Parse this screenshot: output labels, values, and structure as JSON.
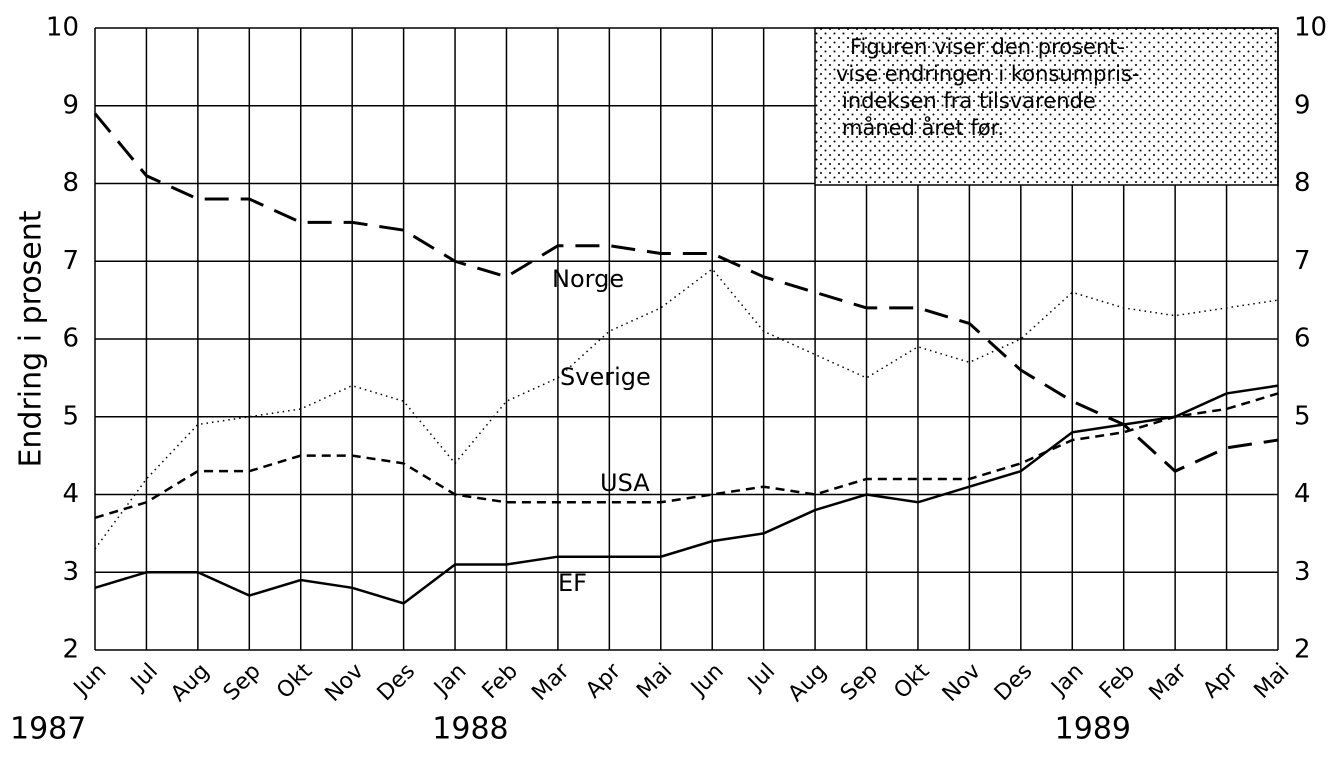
{
  "chart_data": {
    "type": "line",
    "y_label": "Endring i prosent",
    "categories": [
      "Jun",
      "Jul",
      "Aug",
      "Sep",
      "Okt",
      "Nov",
      "Des",
      "Jan",
      "Feb",
      "Mar",
      "Apr",
      "Mai",
      "Jun",
      "Jul",
      "Aug",
      "Sep",
      "Okt",
      "Nov",
      "Des",
      "Jan",
      "Feb",
      "Mar",
      "Apr",
      "Mai"
    ],
    "years": [
      {
        "label": "1987",
        "index": 0
      },
      {
        "label": "1988",
        "index": 7.3
      },
      {
        "label": "1989",
        "index": 19.4
      }
    ],
    "ylim": [
      2,
      10
    ],
    "yticks": [
      2,
      3,
      4,
      5,
      6,
      7,
      8,
      9,
      10
    ],
    "grid": true,
    "annotation": [
      "Figuren viser den prosent-",
      "vise endringen i konsumpris-",
      "indeksen fra tilsvarende",
      "måned året før."
    ],
    "series": [
      {
        "name": "Norge",
        "color": "#000000",
        "line_style": "long-dash",
        "values": [
          8.9,
          8.1,
          7.8,
          7.8,
          7.5,
          7.5,
          7.4,
          7.0,
          6.8,
          7.2,
          7.2,
          7.1,
          7.1,
          6.8,
          6.6,
          6.4,
          6.4,
          6.2,
          5.6,
          5.2,
          4.9,
          4.3,
          4.6,
          4.7
        ]
      },
      {
        "name": "Sverige",
        "color": "#000000",
        "line_style": "dotted",
        "values": [
          3.3,
          4.2,
          4.9,
          5.0,
          5.1,
          5.4,
          5.2,
          4.4,
          5.2,
          5.5,
          6.1,
          6.4,
          6.9,
          6.1,
          5.8,
          5.5,
          5.9,
          5.7,
          6.0,
          6.6,
          6.4,
          6.3,
          6.4,
          6.5
        ]
      },
      {
        "name": "USA",
        "color": "#000000",
        "line_style": "short-dash",
        "values": [
          3.7,
          3.9,
          4.3,
          4.3,
          4.5,
          4.5,
          4.4,
          4.0,
          3.9,
          3.9,
          3.9,
          3.9,
          4.0,
          4.1,
          4.0,
          4.2,
          4.2,
          4.2,
          4.4,
          4.7,
          4.8,
          5.0,
          5.1,
          5.3
        ]
      },
      {
        "name": "EF",
        "color": "#000000",
        "line_style": "solid",
        "values": [
          2.8,
          3.0,
          3.0,
          2.7,
          2.9,
          2.8,
          2.6,
          3.1,
          3.1,
          3.2,
          3.2,
          3.2,
          3.4,
          3.5,
          3.8,
          4.0,
          3.9,
          4.1,
          4.3,
          4.8,
          4.9,
          5.0,
          5.3,
          5.4
        ]
      }
    ]
  }
}
